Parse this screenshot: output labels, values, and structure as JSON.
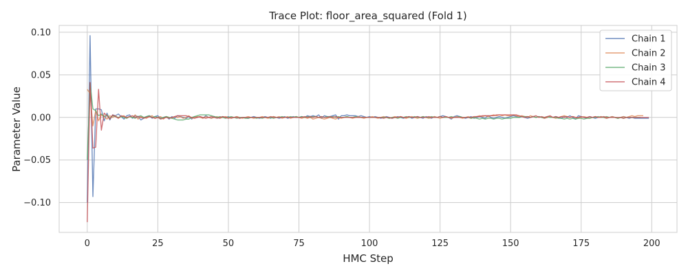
{
  "chart_data": {
    "type": "line",
    "title": "Trace Plot: floor_area_squared (Fold 1)",
    "xlabel": "HMC Step",
    "ylabel": "Parameter Value",
    "xlim": [
      -9.95,
      208.95
    ],
    "ylim": [
      -0.135,
      0.108
    ],
    "xticks": [
      0,
      25,
      50,
      75,
      100,
      125,
      150,
      175,
      200
    ],
    "xtick_labels": [
      "0",
      "25",
      "50",
      "75",
      "100",
      "125",
      "150",
      "175",
      "200"
    ],
    "yticks": [
      -0.1,
      -0.05,
      0.0,
      0.05,
      0.1
    ],
    "ytick_labels": [
      "−0.10",
      "−0.05",
      "0.00",
      "0.05",
      "0.10"
    ],
    "grid": true,
    "legend_position": "top-right",
    "series": [
      {
        "name": "Chain 1",
        "color": "#4c72b0",
        "values": [
          -0.1,
          0.096,
          -0.093,
          0.01,
          0.01,
          0.009,
          -0.004,
          0.005,
          -0.003,
          0.003,
          0.002,
          0.004,
          0.001,
          -0.002,
          0.002,
          0.003,
          -0.001,
          0.002,
          0.001,
          -0.003,
          -0.001,
          0.001,
          0.002,
          -0.001,
          0.001,
          0.002,
          -0.001,
          0.0,
          0.001,
          -0.002,
          0.001,
          -0.001,
          0.002,
          0.001,
          0.0,
          -0.001,
          0.001,
          -0.002,
          0.001,
          0.0,
          0.001,
          -0.001,
          0.002,
          0.0,
          -0.001,
          0.001,
          0.0,
          -0.001,
          0.001,
          0.0,
          0.001,
          -0.001,
          0.0,
          0.001,
          -0.001,
          0.0,
          0.0,
          -0.001,
          0.0,
          0.001,
          0.0,
          -0.001,
          0.0,
          0.001,
          0.0,
          -0.001,
          0.001,
          0.0,
          -0.001,
          0.0,
          0.001,
          -0.001,
          0.0,
          0.001,
          0.0,
          0.0,
          0.001,
          0.0,
          0.002,
          0.001,
          0.002,
          0.001,
          0.003,
          -0.001,
          0.002,
          0.001,
          0.001,
          0.002,
          0.003,
          -0.002,
          0.002,
          0.002,
          0.003,
          0.002,
          0.002,
          0.002,
          0.001,
          0.002,
          0.001,
          0.0,
          0.001,
          0.0,
          0.001,
          0.0,
          -0.001,
          0.0,
          0.001,
          0.0,
          -0.001,
          0.0,
          0.001,
          0.0,
          -0.001,
          0.0,
          0.001,
          -0.001,
          0.0,
          0.001,
          0.0,
          -0.001,
          0.001,
          0.0,
          -0.001,
          0.001,
          0.0,
          0.001,
          0.002,
          0.001,
          0.0,
          -0.002,
          0.001,
          0.002,
          0.001,
          0.0,
          -0.001,
          0.0,
          0.001,
          -0.001,
          0.0,
          0.001,
          0.0,
          -0.001,
          0.002,
          0.0,
          -0.001,
          0.0,
          0.001,
          0.0,
          -0.001,
          0.0,
          0.001,
          0.002,
          0.001,
          0.0,
          0.001,
          0.0,
          -0.001,
          0.0,
          0.001,
          0.0,
          0.001,
          0.0,
          -0.001,
          0.0,
          0.001,
          0.0,
          0.001,
          0.0,
          -0.001,
          0.001,
          0.0,
          0.002,
          0.0,
          -0.002,
          0.002,
          0.001,
          0.0,
          -0.001,
          0.001,
          0.0,
          -0.001,
          0.0,
          0.001,
          0.0,
          -0.001,
          0.0,
          0.001,
          0.0,
          -0.001,
          0.0,
          0.001,
          0.0,
          -0.001,
          0.0,
          -0.001,
          -0.001,
          -0.001,
          -0.001,
          -0.001,
          -0.001
        ]
      },
      {
        "name": "Chain 2",
        "color": "#dd8452",
        "values": [
          0.033,
          0.028,
          -0.01,
          0.008,
          -0.004,
          0.003,
          0.001,
          -0.002,
          0.002,
          0.0,
          0.002,
          -0.001,
          0.001,
          0.002,
          -0.001,
          0.001,
          0.0,
          0.003,
          -0.002,
          0.001,
          0.0,
          -0.001,
          0.001,
          0.002,
          -0.001,
          0.0,
          0.001,
          -0.002,
          0.001,
          0.0,
          -0.001,
          0.001,
          0.0,
          0.001,
          -0.001,
          0.0,
          0.002,
          -0.001,
          0.0,
          0.001,
          0.0,
          -0.001,
          0.001,
          0.0,
          -0.001,
          0.0,
          0.001,
          -0.001,
          0.0,
          0.001,
          0.0,
          -0.001,
          0.0,
          0.001,
          0.0,
          -0.001,
          0.0,
          0.001,
          0.0,
          -0.001,
          0.0,
          0.0,
          0.001,
          0.0,
          -0.001,
          0.0,
          0.001,
          0.0,
          0.001,
          -0.001,
          0.0,
          0.001,
          -0.001,
          0.0,
          0.001,
          0.0,
          -0.001,
          0.0,
          -0.001,
          0.0,
          -0.002,
          -0.001,
          0.0,
          -0.001,
          -0.002,
          -0.001,
          0.0,
          -0.001,
          -0.002,
          0.0,
          -0.001,
          0.0,
          0.001,
          0.0,
          -0.001,
          0.0,
          0.001,
          0.0,
          -0.001,
          0.0,
          0.0,
          0.001,
          0.0,
          -0.001,
          0.0,
          0.001,
          0.0,
          -0.001,
          0.0,
          0.001,
          0.0,
          0.001,
          0.0,
          -0.001,
          0.0,
          0.001,
          0.0,
          -0.001,
          0.0,
          0.001,
          0.0,
          -0.001,
          0.0,
          0.001,
          0.0,
          -0.001,
          0.0,
          0.001,
          0.0,
          -0.001,
          0.0,
          0.001,
          0.0,
          -0.001,
          0.0,
          0.001,
          -0.001,
          0.0,
          0.001,
          0.002,
          0.001,
          0.002,
          0.001,
          0.002,
          0.003,
          0.002,
          0.003,
          0.002,
          0.003,
          0.002,
          0.002,
          0.003,
          0.002,
          0.001,
          0.002,
          0.001,
          0.0,
          0.002,
          0.001,
          0.0,
          0.001,
          0.0,
          -0.001,
          0.0,
          0.001,
          0.0,
          -0.001,
          0.0,
          0.001,
          0.002,
          0.001,
          0.0,
          0.001,
          0.0,
          -0.001,
          0.0,
          0.001,
          0.0,
          -0.001,
          0.0,
          0.001,
          0.0,
          0.001,
          0.0,
          -0.001,
          0.0,
          0.001,
          0.0,
          -0.001,
          0.0,
          0.001,
          0.0,
          0.001,
          0.002,
          0.001,
          0.002,
          0.002,
          0.002
        ]
      },
      {
        "name": "Chain 3",
        "color": "#55a868",
        "values": [
          -0.05,
          0.04,
          0.01,
          0.008,
          0.002,
          0.004,
          0.001,
          0.003,
          -0.001,
          0.002,
          0.001,
          0.0,
          0.001,
          0.0,
          -0.001,
          0.001,
          0.0,
          -0.001,
          0.001,
          0.002,
          0.0,
          0.001,
          0.002,
          0.0,
          0.001,
          0.0,
          -0.001,
          0.0,
          0.001,
          0.0,
          -0.001,
          -0.002,
          -0.003,
          -0.003,
          -0.003,
          -0.002,
          -0.002,
          0.0,
          0.001,
          0.002,
          0.003,
          0.003,
          0.003,
          0.003,
          0.002,
          0.001,
          0.0,
          0.001,
          0.0,
          -0.001,
          0.0,
          0.001,
          0.0,
          -0.001,
          0.0,
          0.0,
          -0.001,
          -0.001,
          0.0,
          0.0,
          -0.001,
          0.0,
          -0.001,
          0.0,
          0.0,
          0.0,
          -0.001,
          0.0,
          0.0,
          0.001,
          0.0,
          0.0,
          0.001,
          0.0,
          0.001,
          0.0,
          0.001,
          0.0,
          0.001,
          0.0,
          0.001,
          0.001,
          0.0,
          0.001,
          0.0,
          0.001,
          0.0,
          0.001,
          0.0,
          0.001,
          0.0,
          0.0,
          0.001,
          0.0,
          0.0,
          0.001,
          0.0,
          0.0,
          0.0,
          0.0,
          0.0,
          0.0,
          0.0,
          0.0,
          0.0,
          0.0,
          0.0,
          -0.001,
          0.0,
          0.0,
          -0.001,
          0.0,
          0.0,
          0.001,
          0.0,
          0.0,
          0.001,
          0.0,
          0.0,
          0.001,
          0.0,
          0.0,
          0.001,
          0.0,
          0.0,
          0.001,
          0.0,
          0.0,
          0.0,
          0.001,
          0.0,
          0.0,
          0.001,
          0.0,
          0.0,
          0.0,
          -0.001,
          0.0,
          -0.001,
          -0.002,
          -0.001,
          -0.002,
          -0.001,
          -0.001,
          -0.002,
          -0.001,
          -0.001,
          -0.002,
          -0.001,
          -0.001,
          -0.001,
          0.0,
          0.0,
          0.0,
          0.001,
          0.001,
          0.001,
          0.0,
          0.001,
          0.0,
          0.001,
          0.0,
          0.0,
          0.001,
          0.0,
          0.0,
          0.0,
          -0.001,
          -0.001,
          -0.002,
          -0.001,
          -0.002,
          -0.001,
          -0.002,
          -0.001,
          -0.001,
          -0.002,
          -0.001,
          -0.001,
          0.0,
          0.0,
          0.001,
          0.0,
          0.0,
          0.001,
          0.0,
          0.0,
          0.0,
          -0.001,
          0.0,
          -0.001,
          0.0,
          0.0,
          0.0,
          0.0,
          0.0,
          0.0
        ]
      },
      {
        "name": "Chain 4",
        "color": "#c44e52",
        "values": [
          -0.123,
          0.041,
          -0.036,
          -0.035,
          0.033,
          -0.015,
          0.005,
          0.002,
          -0.002,
          0.003,
          0.001,
          -0.001,
          0.002,
          0.001,
          0.0,
          0.001,
          0.002,
          0.0,
          0.001,
          0.0,
          -0.001,
          0.0,
          0.001,
          0.0,
          -0.001,
          0.0,
          -0.002,
          -0.001,
          0.0,
          -0.001,
          0.0,
          0.001,
          0.002,
          0.002,
          0.002,
          0.002,
          0.001,
          0.0,
          -0.001,
          0.0,
          0.001,
          0.0,
          -0.001,
          0.0,
          0.001,
          0.0,
          -0.001,
          0.0,
          0.001,
          0.0,
          -0.001,
          0.0,
          0.0,
          0.0,
          -0.001,
          0.0,
          0.0,
          0.0,
          0.0,
          0.0,
          0.0,
          0.0,
          0.0,
          0.0,
          0.0,
          0.001,
          0.0,
          0.0,
          0.0,
          0.0,
          0.0,
          0.0,
          0.0,
          0.0,
          0.0,
          0.0,
          0.0,
          0.001,
          0.0,
          0.001,
          0.0,
          0.001,
          0.0,
          0.001,
          0.0,
          0.0,
          0.001,
          0.0,
          0.001,
          0.0,
          0.0,
          0.0,
          0.0,
          0.0,
          0.0,
          0.0,
          0.0,
          0.0,
          0.0,
          0.0,
          0.0,
          0.0,
          0.0,
          0.0,
          0.0,
          -0.001,
          0.0,
          0.0,
          -0.001,
          0.0,
          0.0,
          0.001,
          0.0,
          0.0,
          0.001,
          0.0,
          0.0,
          0.001,
          0.0,
          0.0,
          0.0,
          0.001,
          0.0,
          0.0,
          0.0,
          0.001,
          0.0,
          0.001,
          0.0,
          0.0,
          0.0,
          0.0,
          0.0,
          0.0,
          0.0,
          0.0,
          0.0,
          0.001,
          0.001,
          0.001,
          0.002,
          0.002,
          0.002,
          0.002,
          0.002,
          0.003,
          0.003,
          0.003,
          0.003,
          0.003,
          0.003,
          0.003,
          0.003,
          0.002,
          0.001,
          0.0,
          0.001,
          0.0,
          0.001,
          0.002,
          0.0,
          0.001,
          0.0,
          0.001,
          0.002,
          0.0,
          0.001,
          0.0,
          0.001,
          0.0,
          0.001,
          0.0,
          0.001,
          0.0,
          0.0,
          0.001,
          0.0,
          0.0,
          0.001,
          0.0,
          0.001,
          0.0,
          0.0,
          0.001,
          0.0,
          0.0,
          0.0,
          0.0,
          0.0,
          0.0,
          -0.001,
          0.0,
          0.0,
          0.0,
          0.0,
          0.0,
          0.0,
          0.0,
          0.0,
          0.0
        ]
      }
    ]
  }
}
